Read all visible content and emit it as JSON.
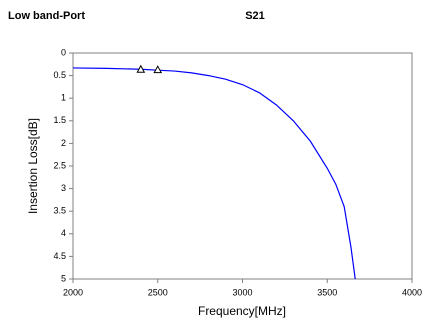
{
  "chart_data": {
    "type": "line",
    "title": "Low band-Port",
    "subtitle": "S21",
    "x_label": "Frequency[MHz]",
    "y_label": "Insertion Loss[dB]",
    "xlim": [
      2000,
      4000
    ],
    "xticks": [
      2000,
      2500,
      3000,
      3500,
      4000
    ],
    "ylim": [
      0,
      5
    ],
    "yticks": [
      0,
      0.5,
      1,
      1.5,
      2,
      2.5,
      3,
      3.5,
      4,
      4.5,
      5
    ],
    "y_inverted": true,
    "grid": false,
    "series": [
      {
        "color": "#0000ff",
        "x": [
          2000,
          2200,
          2400,
          2500,
          2600,
          2700,
          2800,
          2900,
          3000,
          3100,
          3200,
          3300,
          3400,
          3500,
          3550,
          3600,
          3640,
          3665
        ],
        "values": [
          0.33,
          0.34,
          0.36,
          0.38,
          0.4,
          0.44,
          0.5,
          0.58,
          0.7,
          0.88,
          1.15,
          1.5,
          1.95,
          2.55,
          2.9,
          3.4,
          4.3,
          5.0
        ]
      },
      {
        "type": "marker",
        "color": "#000000",
        "x": [
          2400,
          2500
        ],
        "values": [
          0.37,
          0.38
        ]
      }
    ]
  }
}
